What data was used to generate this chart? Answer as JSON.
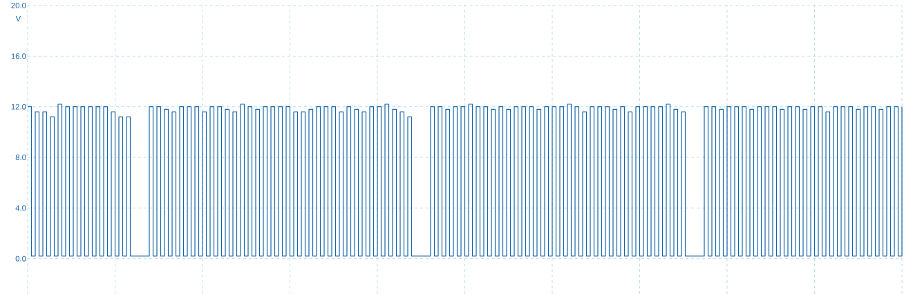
{
  "chart_data": {
    "type": "step",
    "ylabel": "V",
    "categories": [
      null,
      null,
      null,
      null,
      null,
      null,
      null,
      null,
      null,
      null,
      null,
      null,
      null,
      null,
      null,
      null,
      null,
      null,
      null,
      null,
      null,
      null,
      null,
      null,
      null,
      null,
      null,
      null,
      null,
      null,
      null,
      null,
      null,
      null,
      null,
      null,
      null,
      null,
      null,
      null,
      null,
      null,
      null,
      null,
      null,
      null,
      null,
      null,
      null,
      null,
      null,
      null,
      null,
      null,
      null,
      null,
      null,
      null,
      null,
      null,
      null,
      null,
      null,
      null,
      null,
      null,
      null,
      null,
      null,
      null,
      null,
      null,
      null,
      null,
      null,
      null,
      null,
      null,
      null,
      null,
      null,
      null,
      null,
      null,
      null,
      null,
      null,
      null,
      null,
      null,
      null,
      null,
      null,
      null,
      null,
      null,
      null,
      null,
      null,
      null,
      null,
      null,
      null,
      null,
      null,
      null,
      null,
      null,
      null,
      null,
      null,
      null,
      null,
      null,
      null,
      null,
      null,
      null,
      null,
      null,
      null,
      null,
      null,
      null,
      null,
      null,
      null,
      null,
      null,
      null,
      null,
      null,
      null,
      null,
      null,
      null,
      null,
      null,
      null,
      null,
      null,
      null,
      null,
      null,
      null,
      null,
      null,
      null,
      null,
      null,
      null,
      null,
      null,
      null,
      null,
      null,
      null,
      null,
      null,
      null,
      null,
      null,
      null,
      null,
      null,
      null,
      null,
      null,
      null,
      null,
      null,
      null,
      null,
      null,
      null,
      null,
      null,
      null,
      null,
      null,
      null,
      null,
      null,
      null,
      null,
      null,
      null,
      null,
      null,
      null,
      null,
      null,
      null,
      null,
      null,
      null,
      null,
      null,
      null,
      null,
      null,
      null,
      null,
      null,
      null,
      null,
      null,
      null,
      null,
      null,
      null,
      null,
      null,
      null,
      null,
      null,
      null,
      null,
      null,
      null,
      null,
      null,
      null,
      null,
      null,
      null,
      null,
      null,
      null,
      null,
      null
    ],
    "series": [
      {
        "color": "#1565a8",
        "values": [
          12.0,
          0.2,
          11.6,
          0.2,
          11.6,
          0.2,
          11.2,
          0.2,
          12.2,
          0.2,
          12.0,
          0.2,
          12.0,
          0.2,
          12.0,
          0.2,
          12.0,
          0.2,
          12.0,
          0.2,
          12.0,
          0.2,
          11.6,
          0.2,
          11.2,
          0.2,
          11.2,
          0.2,
          0.2,
          0.2,
          0.2,
          0.2,
          12.0,
          0.2,
          12.0,
          0.2,
          11.8,
          0.2,
          11.6,
          0.2,
          12.0,
          0.2,
          12.0,
          0.2,
          12.0,
          0.2,
          11.6,
          0.2,
          12.0,
          0.2,
          12.0,
          0.2,
          11.8,
          0.2,
          11.6,
          0.2,
          12.2,
          0.2,
          12.0,
          0.2,
          11.8,
          0.2,
          12.0,
          0.2,
          12.0,
          0.2,
          12.0,
          0.2,
          12.0,
          0.2,
          11.6,
          0.2,
          11.6,
          0.2,
          11.8,
          0.2,
          12.0,
          0.2,
          12.0,
          0.2,
          12.0,
          0.2,
          11.6,
          0.2,
          12.0,
          0.2,
          11.8,
          0.2,
          11.6,
          0.2,
          12.0,
          0.2,
          12.0,
          0.2,
          12.2,
          0.2,
          11.8,
          0.2,
          11.6,
          0.2,
          11.2,
          0.2,
          0.2,
          0.2,
          0.2,
          0.2,
          12.0,
          0.2,
          12.0,
          0.2,
          11.8,
          0.2,
          12.0,
          0.2,
          12.0,
          0.2,
          12.2,
          0.2,
          12.0,
          0.2,
          12.0,
          0.2,
          11.8,
          0.2,
          12.0,
          0.2,
          11.8,
          0.2,
          12.0,
          0.2,
          12.0,
          0.2,
          12.0,
          0.2,
          11.8,
          0.2,
          12.0,
          0.2,
          12.0,
          0.2,
          12.0,
          0.2,
          12.2,
          0.2,
          12.0,
          0.2,
          11.6,
          0.2,
          12.0,
          0.2,
          12.0,
          0.2,
          12.0,
          0.2,
          11.8,
          0.2,
          12.0,
          0.2,
          11.6,
          0.2,
          12.0,
          0.2,
          12.0,
          0.2,
          12.0,
          0.2,
          12.0,
          0.2,
          12.2,
          0.2,
          11.8,
          0.2,
          11.6,
          0.2,
          0.2,
          0.2,
          0.2,
          0.2,
          12.0,
          0.2,
          12.0,
          0.2,
          11.8,
          0.2,
          12.0,
          0.2,
          12.0,
          0.2,
          12.0,
          0.2,
          11.8,
          0.2,
          12.0,
          0.2,
          12.0,
          0.2,
          12.0,
          0.2,
          11.8,
          0.2,
          12.0,
          0.2,
          12.0,
          0.2,
          11.8,
          0.2,
          12.0,
          0.2,
          12.0,
          0.2,
          11.6,
          0.2,
          12.0,
          0.2,
          12.0,
          0.2,
          12.0,
          0.2,
          11.8,
          0.2,
          12.0,
          0.2,
          12.0,
          0.2,
          11.8,
          0.2,
          12.0,
          0.2,
          12.0,
          0.2,
          12.0
        ]
      }
    ],
    "ylim": [
      -2.8,
      20
    ],
    "yticks": [
      {
        "value": 0,
        "label": "0.0"
      },
      {
        "value": 4,
        "label": "4.0"
      },
      {
        "value": 8,
        "label": "8.0"
      },
      {
        "value": 12,
        "label": "12.0"
      },
      {
        "value": 16,
        "label": "16.0"
      },
      {
        "value": 20,
        "label": "20.0"
      }
    ],
    "grid": true,
    "tick_labels": "y",
    "line_style": "solid"
  }
}
